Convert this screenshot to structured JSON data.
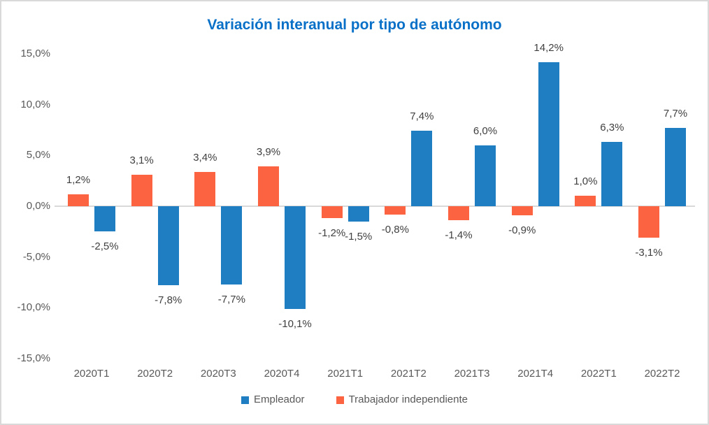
{
  "chart_data": {
    "type": "bar",
    "title": "Variación interanual por tipo de autónomo",
    "categories": [
      "2020T1",
      "2020T2",
      "2020T3",
      "2020T4",
      "2021T1",
      "2021T2",
      "2021T3",
      "2021T4",
      "2022T1",
      "2022T2"
    ],
    "series": [
      {
        "name": "Empleador",
        "color": "#1F7EC1",
        "values": [
          -2.5,
          -7.8,
          -7.7,
          -10.1,
          -1.5,
          7.4,
          6.0,
          14.2,
          6.3,
          7.7
        ],
        "labels": [
          "-2,5%",
          "-7,8%",
          "-7,7%",
          "-10,1%",
          "-1,5%",
          "7,4%",
          "6,0%",
          "14,2%",
          "6,3%",
          "7,7%"
        ]
      },
      {
        "name": "Trabajador independiente",
        "color": "#FC6340",
        "values": [
          1.2,
          3.1,
          3.4,
          3.9,
          -1.2,
          -0.8,
          -1.4,
          -0.9,
          1.0,
          -3.1
        ],
        "labels": [
          "1,2%",
          "3,1%",
          "3,4%",
          "3,9%",
          "-1,2%",
          "-0,8%",
          "-1,4%",
          "-0,9%",
          "1,0%",
          "-3,1%"
        ]
      }
    ],
    "y_ticks": [
      {
        "value": 15,
        "label": "15,0%"
      },
      {
        "value": 10,
        "label": "10,0%"
      },
      {
        "value": 5,
        "label": "5,0%"
      },
      {
        "value": 0,
        "label": "0,0%"
      },
      {
        "value": -5,
        "label": "-5,0%"
      },
      {
        "value": -10,
        "label": "-10,0%"
      },
      {
        "value": -15,
        "label": "-15,0%"
      }
    ],
    "ylim": [
      -15,
      15
    ],
    "grid": false,
    "legend_position": "bottom"
  },
  "colors": {
    "title_text": "#0970C8",
    "axis_text": "#595959",
    "data_label_text": "#404040",
    "axis_line": "#D9D9D9",
    "frame_border": "#D9D9D9"
  }
}
